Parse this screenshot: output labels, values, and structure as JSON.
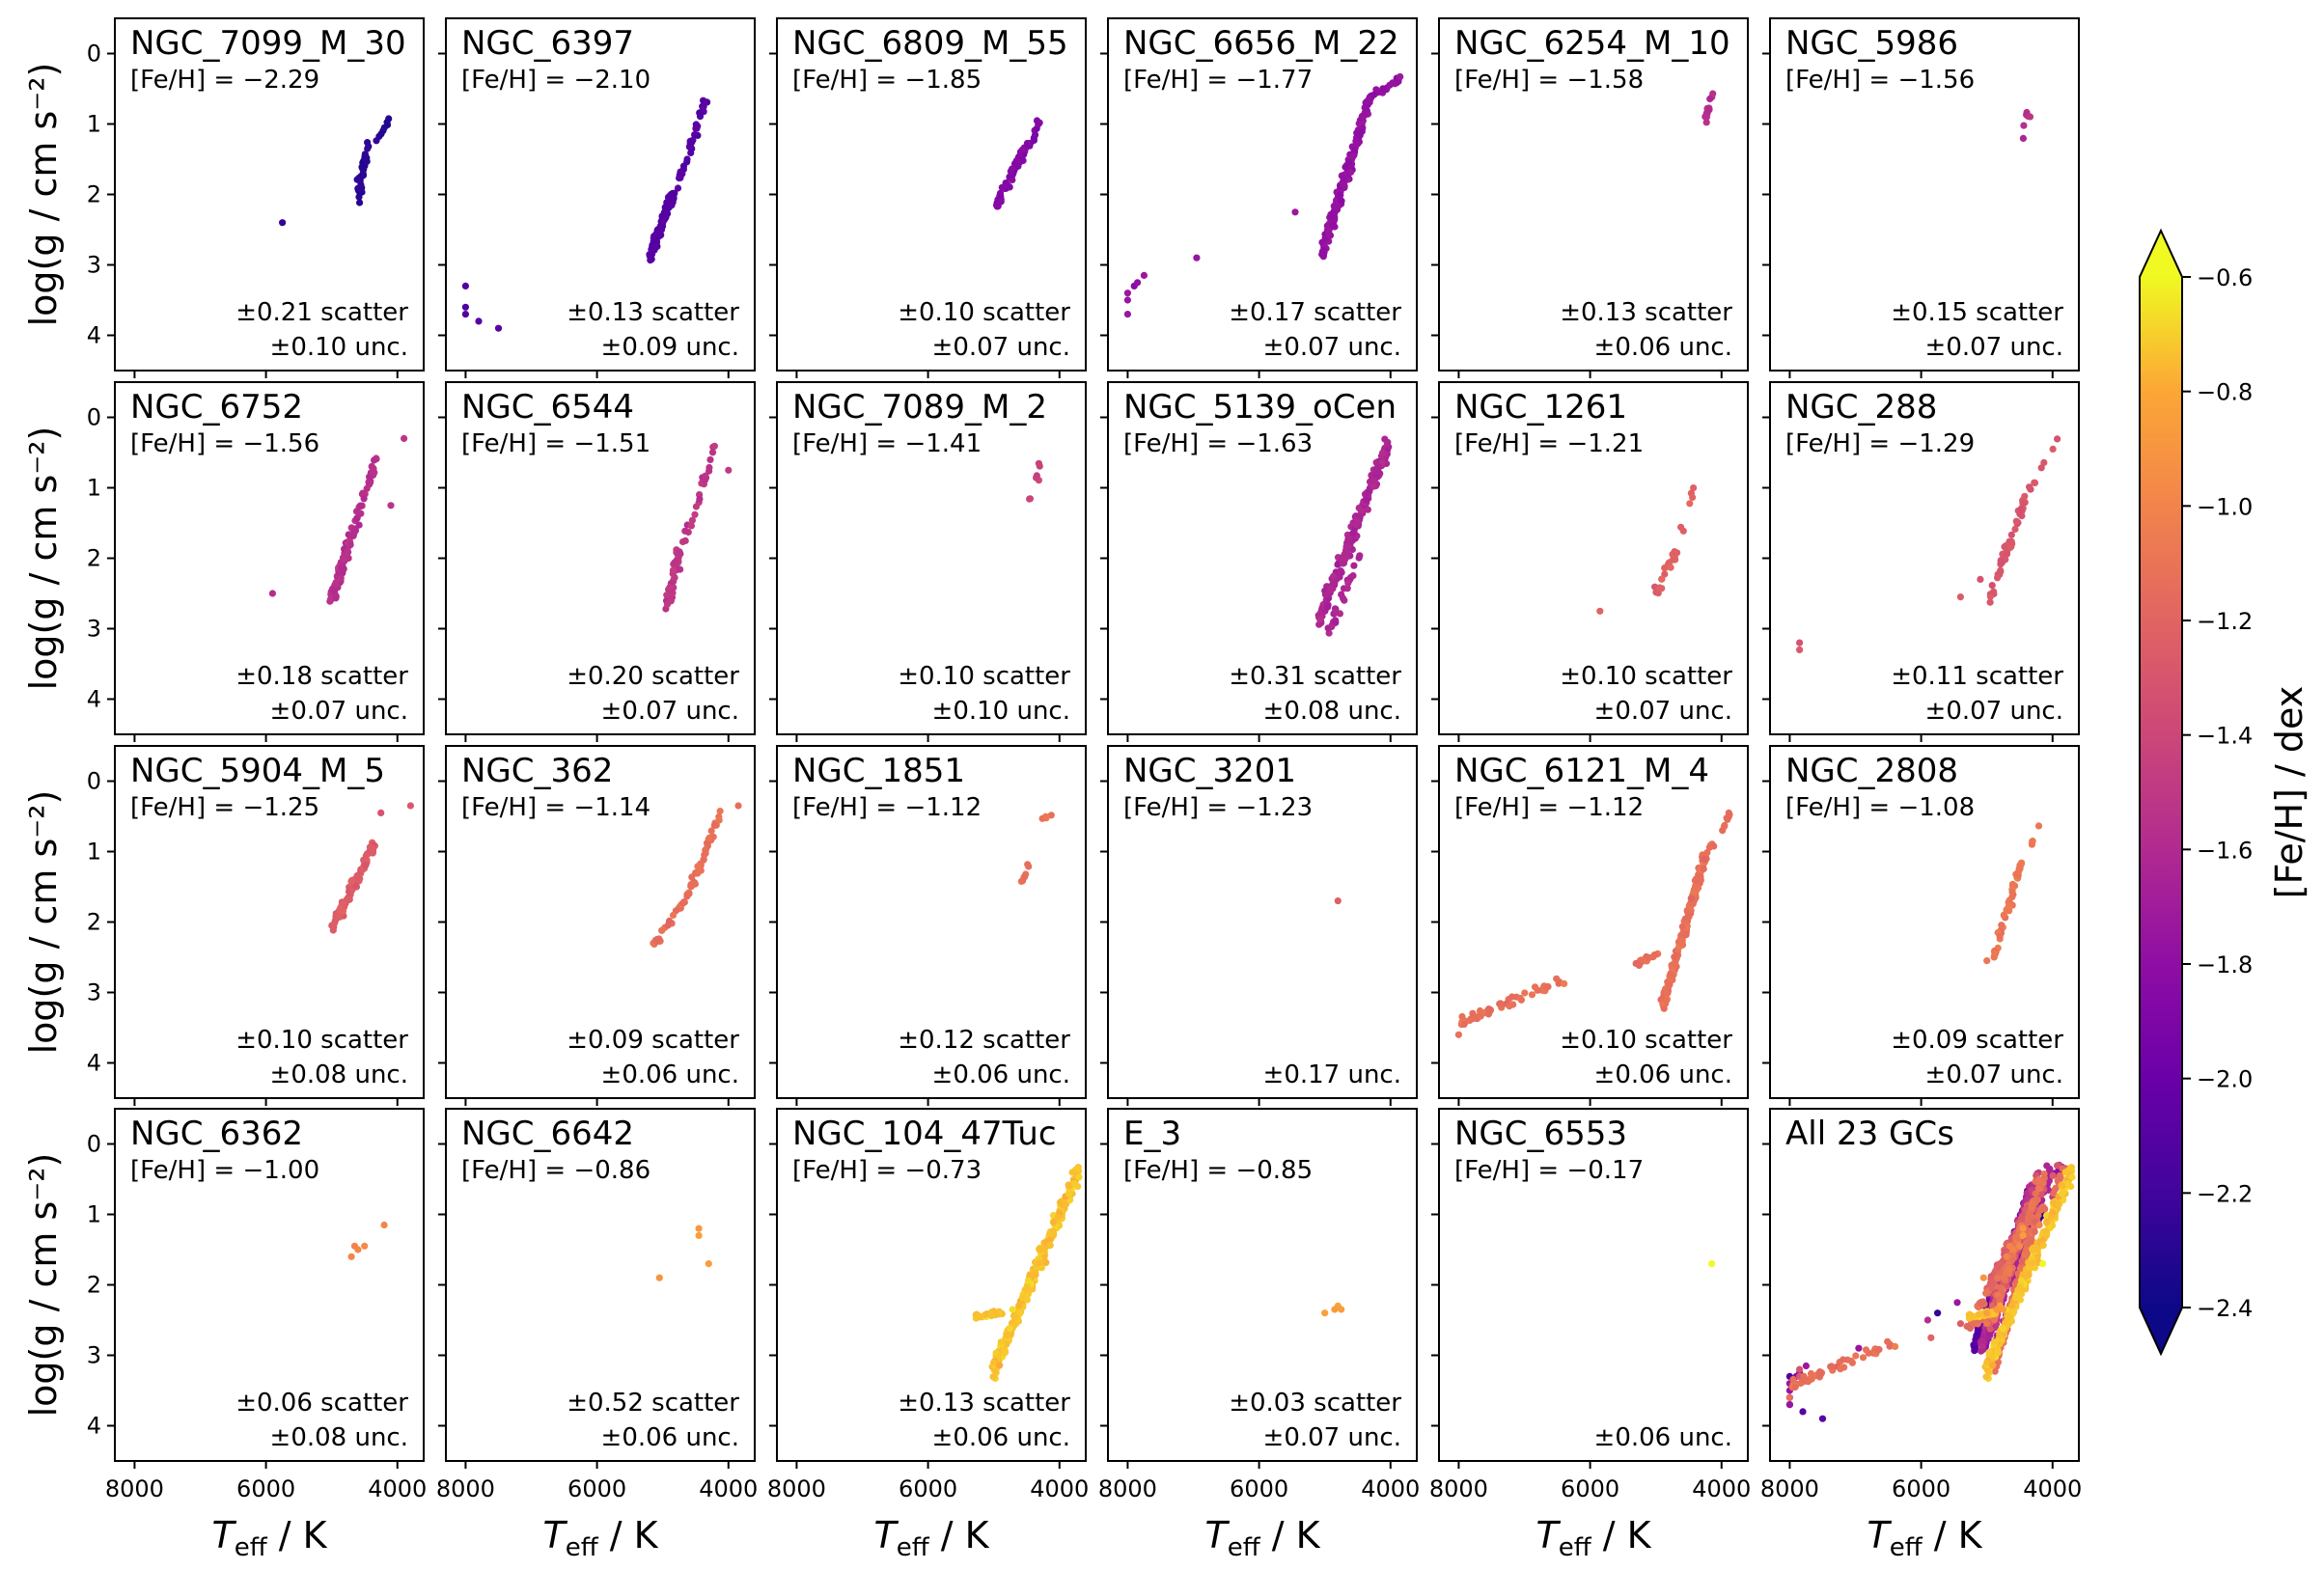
{
  "figure": {
    "x_axis_label_prefix": "T",
    "x_axis_label_sub": "eff",
    "x_axis_label_suffix": " / K",
    "y_axis_label": "log(g / cm s⁻²)",
    "x_ticks": [
      "8000",
      "6000",
      "4000"
    ],
    "y_ticks": [
      "0",
      "1",
      "2",
      "3",
      "4"
    ],
    "feh_prefix": "[Fe/H] = "
  },
  "colorbar": {
    "label": "[Fe/H] / dex",
    "colormap": "plasma",
    "range": [
      -2.4,
      -0.6
    ],
    "ticks": [
      "-0.6",
      "-0.8",
      "-1.0",
      "-1.2",
      "-1.4",
      "-1.6",
      "-1.8",
      "-2.0",
      "-2.2",
      "-2.4"
    ],
    "extend": "both"
  },
  "chart_data": {
    "type": "scatter",
    "x_quantity": "Teff / K",
    "y_quantity": "log(g / cm s^-2)",
    "xlim": [
      8300,
      3600
    ],
    "ylim": [
      4.5,
      -0.5
    ],
    "color_quantity": "[Fe/H]",
    "panels": [
      {
        "title": "NGC_7099_M_30",
        "feh": "−2.29",
        "feh_value": -2.29,
        "scatter": "±0.21 scatter",
        "unc": "±0.10 unc.",
        "tracks": [
          [
            4600,
            2.05,
            4450,
            1.25,
            40,
            0.18
          ],
          [
            4350,
            1.3,
            4100,
            0.9,
            8,
            0.08
          ]
        ],
        "isolated": [
          [
            5750,
            2.4
          ]
        ]
      },
      {
        "title": "NGC_6397",
        "feh": "−2.10",
        "feh_value": -2.1,
        "scatter": "±0.13 scatter",
        "unc": "±0.09 unc.",
        "tracks": [
          [
            5200,
            2.9,
            4850,
            2.0,
            110,
            0.08
          ],
          [
            4850,
            2.1,
            4350,
            0.65,
            40,
            0.08
          ]
        ],
        "isolated": [
          [
            8000,
            3.3
          ],
          [
            8000,
            3.7
          ],
          [
            7800,
            3.8
          ],
          [
            7500,
            3.9
          ],
          [
            8000,
            3.6
          ]
        ]
      },
      {
        "title": "NGC_6809_M_55",
        "feh": "−1.85",
        "feh_value": -1.85,
        "scatter": "±0.10 scatter",
        "unc": "±0.07 unc.",
        "tracks": [
          [
            4950,
            2.15,
            4500,
            1.3,
            60,
            0.12
          ],
          [
            4500,
            1.4,
            4300,
            0.9,
            10,
            0.06
          ]
        ],
        "isolated": [
          [
            4900,
            2.1
          ]
        ]
      },
      {
        "title": "NGC_6656_M_22",
        "feh": "−1.77",
        "feh_value": -1.77,
        "scatter": "±0.17 scatter",
        "unc": "±0.07 unc.",
        "tracks": [
          [
            5050,
            2.85,
            4300,
            0.6,
            200,
            0.13
          ],
          [
            4300,
            0.6,
            3850,
            0.35,
            20,
            0.06
          ]
        ],
        "isolated": [
          [
            8000,
            3.7
          ],
          [
            8000,
            3.5
          ],
          [
            7900,
            3.3
          ],
          [
            7750,
            3.15
          ],
          [
            7850,
            3.25
          ],
          [
            6950,
            2.9
          ],
          [
            5450,
            2.25
          ],
          [
            8000,
            3.4
          ]
        ]
      },
      {
        "title": "NGC_6254_M_10",
        "feh": "−1.58",
        "feh_value": -1.58,
        "scatter": "±0.13 scatter",
        "unc": "±0.06 unc.",
        "tracks": [
          [
            4280,
            1.0,
            4120,
            0.55,
            12,
            0.1
          ]
        ],
        "isolated": []
      },
      {
        "title": "NGC_5986",
        "feh": "−1.56",
        "feh_value": -1.56,
        "scatter": "±0.15 scatter",
        "unc": "±0.07 unc.",
        "tracks": [
          [
            4450,
            1.25,
            4350,
            0.75,
            6,
            0.05
          ]
        ],
        "isolated": []
      },
      {
        "title": "NGC_6752",
        "feh": "−1.56",
        "feh_value": -1.56,
        "scatter": "±0.18 scatter",
        "unc": "±0.07 unc.",
        "tracks": [
          [
            5000,
            2.6,
            4700,
            1.7,
            80,
            0.22
          ],
          [
            4700,
            1.7,
            4300,
            0.5,
            40,
            0.1
          ]
        ],
        "isolated": [
          [
            5900,
            2.5
          ],
          [
            3900,
            0.3
          ],
          [
            4100,
            1.25
          ]
        ]
      },
      {
        "title": "NGC_6544",
        "feh": "−1.51",
        "feh_value": -1.51,
        "scatter": "±0.20 scatter",
        "unc": "±0.07 unc.",
        "tracks": [
          [
            4950,
            2.7,
            4750,
            1.9,
            40,
            0.22
          ],
          [
            4700,
            1.9,
            4200,
            0.35,
            25,
            0.1
          ]
        ],
        "isolated": [
          [
            4000,
            0.75
          ]
        ]
      },
      {
        "title": "NGC_7089_M_2",
        "feh": "−1.41",
        "feh_value": -1.41,
        "scatter": "±0.10 scatter",
        "unc": "±0.10 unc.",
        "tracks": [
          [
            4450,
            1.2,
            4250,
            0.6,
            8,
            0.06
          ]
        ],
        "isolated": []
      },
      {
        "title": "NGC_5139_oCen",
        "feh": "−1.63",
        "feh_value": -1.63,
        "scatter": "±0.31 scatter",
        "unc": "±0.08 unc.",
        "tracks": [
          [
            5100,
            2.9,
            4050,
            0.4,
            230,
            0.18
          ],
          [
            4950,
            3.1,
            4500,
            2.0,
            30,
            0.15
          ]
        ],
        "isolated": []
      },
      {
        "title": "NGC_1261",
        "feh": "−1.21",
        "feh_value": -1.21,
        "scatter": "±0.10 scatter",
        "unc": "±0.07 unc.",
        "tracks": [
          [
            5000,
            2.5,
            4700,
            1.9,
            20,
            0.15
          ],
          [
            4600,
            1.6,
            4400,
            0.9,
            6,
            0.1
          ]
        ],
        "isolated": [
          [
            5850,
            2.75
          ]
        ]
      },
      {
        "title": "NGC_288",
        "feh": "−1.29",
        "feh_value": -1.29,
        "scatter": "±0.11 scatter",
        "unc": "±0.07 unc.",
        "tracks": [
          [
            4950,
            2.6,
            4400,
            1.1,
            50,
            0.14
          ],
          [
            4400,
            1.1,
            3900,
            0.3,
            8,
            0.08
          ]
        ],
        "isolated": [
          [
            7850,
            3.2
          ],
          [
            7850,
            3.3
          ],
          [
            5400,
            2.55
          ],
          [
            5100,
            2.3
          ]
        ]
      },
      {
        "title": "NGC_5904_M_5",
        "feh": "−1.25",
        "feh_value": -1.25,
        "scatter": "±0.10 scatter",
        "unc": "±0.08 unc.",
        "tracks": [
          [
            5000,
            2.1,
            4350,
            0.9,
            90,
            0.1
          ]
        ],
        "isolated": [
          [
            4250,
            0.45
          ],
          [
            3800,
            0.35
          ]
        ]
      },
      {
        "title": "NGC_362",
        "feh": "−1.14",
        "feh_value": -1.14,
        "scatter": "±0.09 scatter",
        "unc": "±0.06 unc.",
        "tracks": [
          [
            5150,
            2.35,
            4600,
            1.6,
            30,
            0.07
          ],
          [
            4600,
            1.6,
            4100,
            0.4,
            45,
            0.07
          ]
        ],
        "isolated": [
          [
            3850,
            0.35
          ]
        ]
      },
      {
        "title": "NGC_1851",
        "feh": "−1.12",
        "feh_value": -1.12,
        "scatter": "±0.12 scatter",
        "unc": "±0.06 unc.",
        "tracks": [
          [
            4600,
            1.45,
            4450,
            1.2,
            7,
            0.06
          ],
          [
            4250,
            0.55,
            4100,
            0.45,
            5,
            0.04
          ]
        ],
        "isolated": []
      },
      {
        "title": "NGC_3201",
        "feh": "−1.23",
        "feh_value": -1.23,
        "scatter": "",
        "unc": "±0.17 unc.",
        "tracks": [],
        "isolated": [
          [
            4800,
            1.7
          ]
        ]
      },
      {
        "title": "NGC_6121_M_4",
        "feh": "−1.12",
        "feh_value": -1.12,
        "scatter": "±0.10 scatter",
        "unc": "±0.06 unc.",
        "tracks": [
          [
            8000,
            3.45,
            6400,
            2.8,
            50,
            0.1
          ],
          [
            5300,
            2.6,
            4950,
            2.45,
            15,
            0.06
          ],
          [
            4900,
            3.2,
            4250,
            1.05,
            230,
            0.1
          ],
          [
            4250,
            1.05,
            3850,
            0.45,
            12,
            0.06
          ]
        ],
        "isolated": [
          [
            8000,
            3.6
          ]
        ]
      },
      {
        "title": "NGC_2808",
        "feh": "−1.08",
        "feh_value": -1.08,
        "scatter": "±0.09 scatter",
        "unc": "±0.07 unc.",
        "tracks": [
          [
            4900,
            2.5,
            4500,
            1.2,
            45,
            0.1
          ],
          [
            4500,
            1.2,
            4200,
            0.6,
            6,
            0.06
          ]
        ],
        "isolated": [
          [
            5000,
            2.55
          ]
        ]
      },
      {
        "title": "NGC_6362",
        "feh": "−1.00",
        "feh_value": -1.0,
        "scatter": "±0.06 scatter",
        "unc": "±0.08 unc.",
        "tracks": [],
        "isolated": [
          [
            4700,
            1.6
          ],
          [
            4650,
            1.45
          ],
          [
            4500,
            1.45
          ],
          [
            4200,
            1.15
          ],
          [
            4600,
            1.5
          ]
        ]
      },
      {
        "title": "NGC_6642",
        "feh": "−0.86",
        "feh_value": -0.86,
        "scatter": "±0.52 scatter",
        "unc": "±0.06 unc.",
        "tracks": [],
        "isolated": [
          [
            5050,
            1.9
          ],
          [
            4450,
            1.2
          ],
          [
            4450,
            1.3
          ],
          [
            4300,
            1.7
          ]
        ]
      },
      {
        "title": "NGC_104_47Tuc",
        "feh": "−0.73",
        "feh_value": -0.73,
        "scatter": "±0.13 scatter",
        "unc": "±0.06 unc.",
        "tracks": [
          [
            5000,
            3.2,
            3700,
            0.35,
            330,
            0.18
          ],
          [
            5300,
            2.45,
            4900,
            2.4,
            20,
            0.07
          ]
        ],
        "isolated": []
      },
      {
        "title": "E_3",
        "feh": "−0.85",
        "feh_value": -0.85,
        "scatter": "±0.03 scatter",
        "unc": "±0.07 unc.",
        "tracks": [],
        "isolated": [
          [
            5000,
            2.4
          ],
          [
            4800,
            2.3
          ],
          [
            4750,
            2.35
          ],
          [
            4850,
            2.35
          ]
        ]
      },
      {
        "title": "NGC_6553",
        "feh": "−0.17",
        "feh_value": -0.17,
        "scatter": "",
        "unc": "±0.06 unc.",
        "tracks": [],
        "isolated": [
          [
            4150,
            1.7
          ]
        ]
      },
      {
        "title": "All 23 GCs",
        "feh": "",
        "feh_value": null,
        "scatter": "",
        "unc": "",
        "combined": true,
        "tracks": [],
        "isolated": []
      }
    ]
  }
}
